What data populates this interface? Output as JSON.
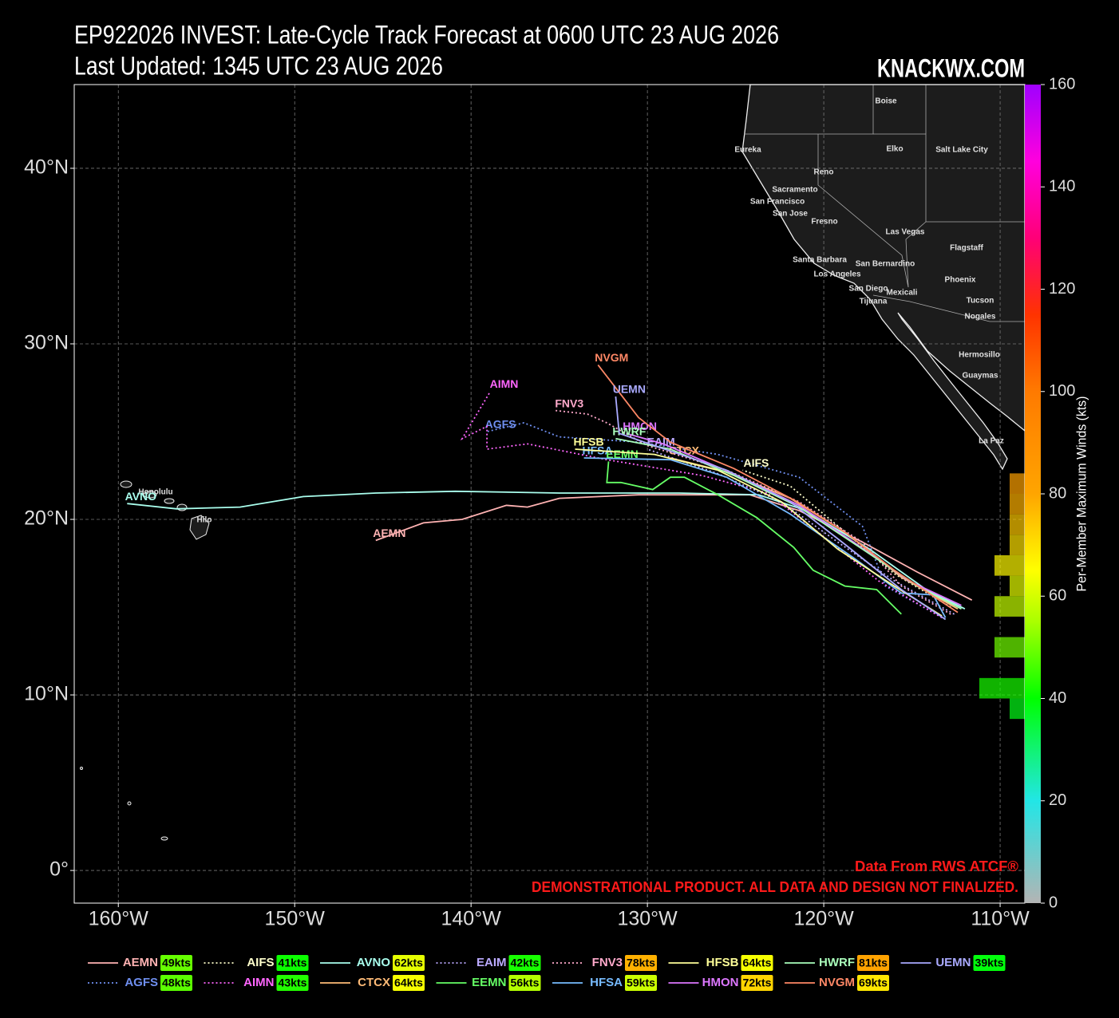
{
  "chart_data": {
    "type": "map",
    "title": "EP922026 INVEST: Late-Cycle Track Forecast at 0600 UTC 23 AUG 2026",
    "subtitle": "Last Updated: 1345 UTC 23 AUG 2026",
    "brand": "KNACKWX.COM",
    "credit": "Data From RWS ATCF®",
    "disclaimer": "DEMONSTRATIONAL PRODUCT. ALL DATA AND DESIGN NOT FINALIZED.",
    "xlim": [
      -162.5,
      -108.6
    ],
    "ylim": [
      -1.86,
      44.77
    ],
    "xticks": [
      {
        "value": -160,
        "label": "160°W"
      },
      {
        "value": -150,
        "label": "150°W"
      },
      {
        "value": -140,
        "label": "140°W"
      },
      {
        "value": -130,
        "label": "130°W"
      },
      {
        "value": -120,
        "label": "120°W"
      },
      {
        "value": -110,
        "label": "110°W"
      }
    ],
    "yticks": [
      {
        "value": 0,
        "label": "0°"
      },
      {
        "value": 10,
        "label": "10°N"
      },
      {
        "value": 20,
        "label": "20°N"
      },
      {
        "value": 30,
        "label": "30°N"
      },
      {
        "value": 40,
        "label": "40°N"
      }
    ],
    "grid": true,
    "series": [
      {
        "name": "AEMN",
        "color": "#ffb3b3",
        "style": "solid",
        "max_wind": 49,
        "max_wind_label": "49kts",
        "lon": [
          -111.6,
          -114.7,
          -117.8,
          -121.4,
          -124.2,
          -130.5,
          -135.0,
          -136.8,
          -138.0,
          -140.5,
          -142.7,
          -145.4
        ],
        "lat": [
          15.4,
          17.0,
          18.7,
          20.5,
          21.4,
          21.4,
          21.2,
          20.7,
          20.8,
          20.0,
          19.8,
          18.8
        ]
      },
      {
        "name": "AGFS",
        "color": "#6f8ff0",
        "style": "dotted",
        "max_wind": 48,
        "max_wind_label": "48kts",
        "lon": [
          -113.1,
          -116.5,
          -117.8,
          -121.4,
          -126.0,
          -130.5,
          -135.0,
          -137.0,
          -139.1
        ],
        "lat": [
          14.3,
          16.2,
          19.6,
          22.4,
          23.7,
          24.4,
          24.7,
          25.5,
          25.0
        ]
      },
      {
        "name": "AIFS",
        "color": "#ffffcc",
        "style": "dotted",
        "max_wind": 41,
        "max_wind_label": "41kts",
        "lon": [
          -112.8,
          -116.0,
          -118.7,
          -121.9,
          -124.6
        ],
        "lat": [
          15.0,
          16.9,
          19.2,
          21.9,
          22.8
        ]
      },
      {
        "name": "AIMN",
        "color": "#ff66ff",
        "style": "dotted",
        "max_wind": 43,
        "max_wind_label": "43kts",
        "lon": [
          -113.3,
          -116.9,
          -119.6,
          -123.2,
          -126.9,
          -132.3,
          -136.8,
          -139.1,
          -139.1,
          -140.5,
          -138.9
        ],
        "lat": [
          14.4,
          16.5,
          18.7,
          21.5,
          22.5,
          23.4,
          24.3,
          24.0,
          25.3,
          24.6,
          27.3
        ]
      },
      {
        "name": "AVNO",
        "color": "#aaffee",
        "style": "solid",
        "max_wind": 62,
        "max_wind_label": "62kts",
        "lon": [
          -112.0,
          -114.2,
          -117.4,
          -121.0,
          -123.7,
          -128.2,
          -135.0,
          -140.9,
          -145.4,
          -149.5,
          -153.1,
          -156.7,
          -159.5
        ],
        "lat": [
          14.9,
          16.0,
          18.3,
          20.5,
          21.4,
          21.5,
          21.5,
          21.6,
          21.5,
          21.3,
          20.7,
          20.6,
          20.9
        ]
      },
      {
        "name": "CTCX",
        "color": "#ffbb77",
        "style": "solid",
        "max_wind": 64,
        "max_wind_label": "64kts",
        "lon": [
          -112.4,
          -115.6,
          -118.7,
          -121.9,
          -125.5,
          -128.7
        ],
        "lat": [
          14.9,
          16.7,
          19.2,
          21.2,
          22.7,
          23.5
        ]
      },
      {
        "name": "EAIM",
        "color": "#bbaaff",
        "style": "dotted",
        "max_wind": 42,
        "max_wind_label": "42kts",
        "lon": [
          -112.6,
          -116.0,
          -119.2,
          -122.4,
          -126.0,
          -130.0
        ],
        "lat": [
          14.6,
          16.5,
          18.7,
          21.0,
          22.6,
          24.0
        ]
      },
      {
        "name": "EEMN",
        "color": "#66ff66",
        "style": "solid",
        "max_wind": 56,
        "max_wind_label": "56kts",
        "lon": [
          -115.6,
          -117.0,
          -118.8,
          -120.6,
          -121.7,
          -123.8,
          -126.0,
          -127.9,
          -128.7,
          -129.7,
          -131.5,
          -132.3,
          -132.2
        ],
        "lat": [
          14.6,
          16.0,
          16.2,
          17.1,
          18.4,
          20.1,
          21.4,
          22.4,
          22.4,
          21.7,
          22.1,
          22.1,
          23.3
        ]
      },
      {
        "name": "FNV3",
        "color": "#ffaacc",
        "style": "dotted",
        "max_wind": 78,
        "max_wind_label": "78kts",
        "lon": [
          -112.8,
          -115.6,
          -117.8,
          -121.4,
          -125.5,
          -130.0,
          -132.3,
          -133.4,
          -135.2
        ],
        "lat": [
          14.6,
          16.2,
          18.7,
          21.0,
          22.8,
          24.2,
          25.5,
          26.0,
          26.2
        ]
      },
      {
        "name": "HFSA",
        "color": "#77bbff",
        "style": "solid",
        "max_wind": 59,
        "max_wind_label": "59kts",
        "lon": [
          -113.1,
          -113.8,
          -115.6,
          -118.3,
          -121.9,
          -125.5,
          -128.7,
          -133.6
        ],
        "lat": [
          14.4,
          15.7,
          15.8,
          17.8,
          20.3,
          22.4,
          23.4,
          23.5
        ]
      },
      {
        "name": "HFSB",
        "color": "#ffff99",
        "style": "solid",
        "max_wind": 64,
        "max_wind_label": "64kts",
        "lon": [
          -113.3,
          -116.0,
          -119.2,
          -122.4,
          -126.0,
          -129.6,
          -134.1
        ],
        "lat": [
          14.5,
          16.2,
          18.3,
          21.0,
          22.8,
          23.7,
          24.0
        ]
      },
      {
        "name": "HMON",
        "color": "#dd77ff",
        "style": "solid",
        "max_wind": 72,
        "max_wind_label": "72kts",
        "lon": [
          -112.2,
          -115.2,
          -118.3,
          -121.4,
          -125.1,
          -129.1,
          -131.2
        ],
        "lat": [
          15.1,
          16.5,
          18.7,
          20.8,
          22.6,
          24.3,
          24.9
        ]
      },
      {
        "name": "HWRF",
        "color": "#aaffbb",
        "style": "solid",
        "max_wind": 81,
        "max_wind_label": "81kts",
        "lon": [
          -112.2,
          -114.7,
          -117.8,
          -121.4,
          -125.1,
          -128.7,
          -131.8
        ],
        "lat": [
          14.9,
          16.2,
          18.3,
          20.7,
          22.5,
          24.0,
          24.6
        ]
      },
      {
        "name": "NVGM",
        "color": "#ff8866",
        "style": "solid",
        "max_wind": 69,
        "max_wind_label": "69kts",
        "lon": [
          -112.4,
          -116.0,
          -118.7,
          -121.5,
          -125.1,
          -128.7,
          -130.5,
          -132.8
        ],
        "lat": [
          14.7,
          17.1,
          19.2,
          21.0,
          22.9,
          24.4,
          25.8,
          28.8
        ]
      },
      {
        "name": "UEMN",
        "color": "#aaaaff",
        "style": "solid",
        "max_wind": 39,
        "max_wind_label": "39kts",
        "lon": [
          -113.1,
          -115.6,
          -118.7,
          -121.9,
          -125.5,
          -129.6,
          -131.6,
          -131.8
        ],
        "lat": [
          14.3,
          16.0,
          18.5,
          21.0,
          22.8,
          24.2,
          24.9,
          27.0
        ]
      }
    ],
    "colorbar": {
      "label": "Per-Member Maximum Winds (kts)",
      "lim": [
        0,
        160
      ],
      "ticks": [
        0,
        20,
        40,
        60,
        80,
        100,
        120,
        140,
        160
      ],
      "colormap": [
        [
          0,
          "#b4b4b4"
        ],
        [
          20,
          "#22e6e6"
        ],
        [
          40,
          "#00ff00"
        ],
        [
          55,
          "#aaff00"
        ],
        [
          65,
          "#ffff00"
        ],
        [
          80,
          "#ffa500"
        ],
        [
          100,
          "#ff7a00"
        ],
        [
          115,
          "#ff3300"
        ],
        [
          130,
          "#ff0077"
        ],
        [
          145,
          "#ff00dd"
        ],
        [
          160,
          "#a000ff"
        ]
      ]
    },
    "wind_histogram": {
      "bins": [
        36,
        40,
        44,
        48,
        52,
        56,
        60,
        64,
        68,
        72,
        76,
        80,
        84
      ],
      "counts": [
        1,
        3,
        0,
        2,
        0,
        2,
        1,
        2,
        1,
        1,
        1,
        1
      ]
    },
    "places": [
      "Boise",
      "Eureka",
      "Elko",
      "Salt Lake City",
      "Reno",
      "Sacramento",
      "San Francisco",
      "San Jose",
      "Fresno",
      "Las Vegas",
      "Flagstaff",
      "Santa Barbara",
      "San Bernardino",
      "Los Angeles",
      "Phoenix",
      "San Diego",
      "Mexicali",
      "Tijuana",
      "Tucson",
      "Nogales",
      "Hermosillo",
      "Guaymas",
      "La Paz",
      "Honolulu",
      "Hilo"
    ]
  }
}
